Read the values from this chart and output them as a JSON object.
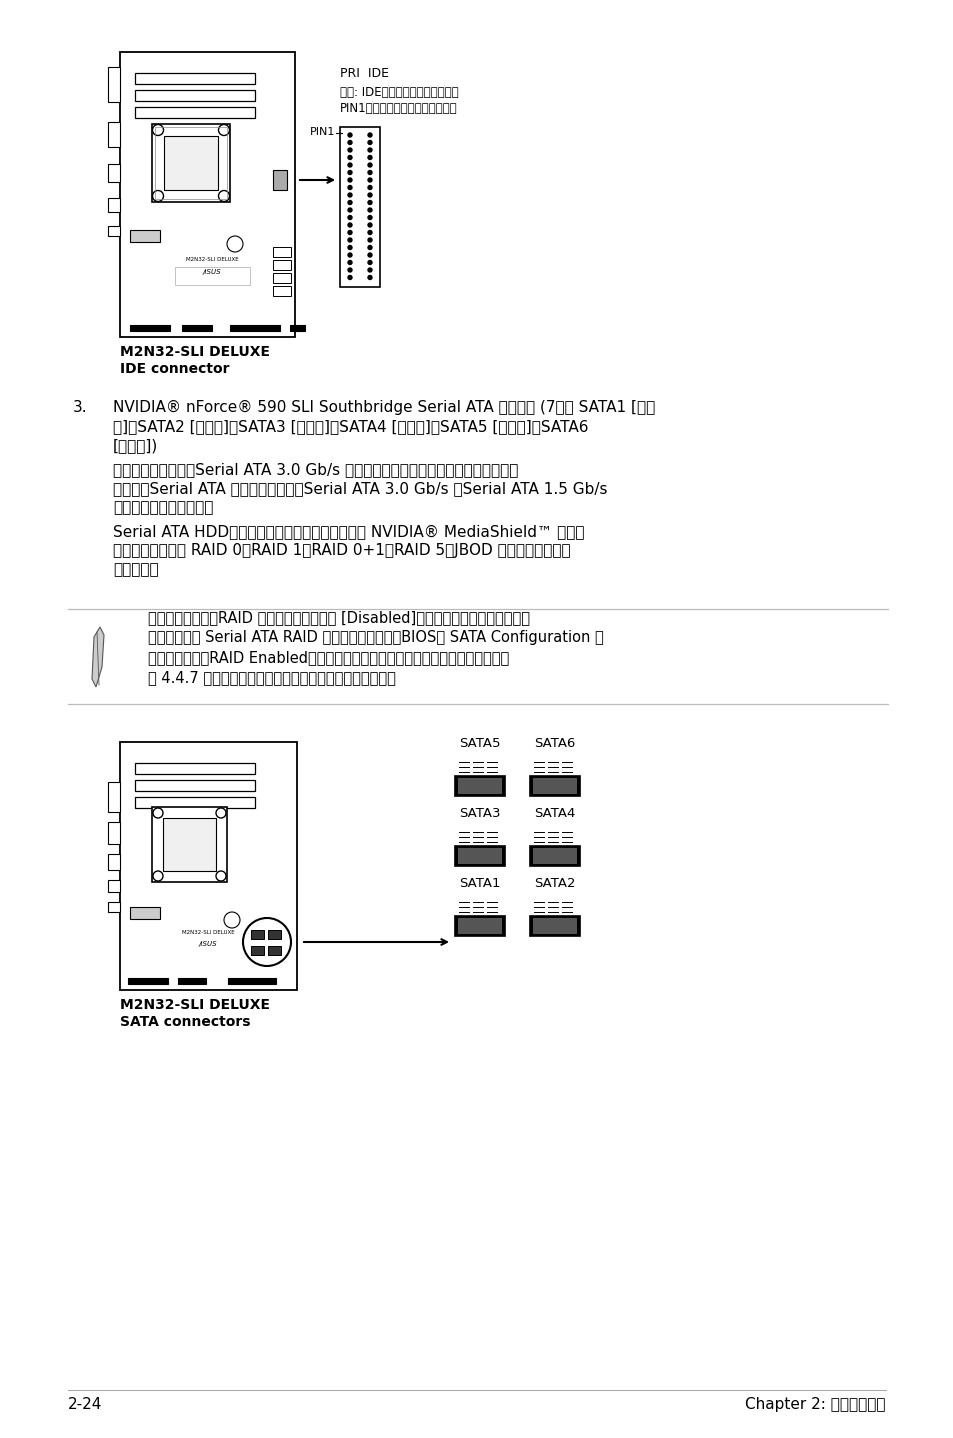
{
  "bg_color": "#ffffff",
  "text_color": "#000000",
  "page_number": "2-24",
  "chapter_label": "Chapter 2: ハードウェア",
  "ide_label1": "M2N32-SLI DELUXE",
  "ide_label2": "IDE connector",
  "sata_label1": "M2N32-SLI DELUXE",
  "sata_label2": "SATA connectors",
  "pri_ide_label": "PRI  IDE",
  "pri_ide_note1": "注意: IDEケーブルの赤いラインと",
  "pri_ide_note2": "PIN1の向きを合わせてください。",
  "pin1_label": "PIN1",
  "item3_num": "3.",
  "item3_line1": "NVIDIA® nForce® 590 SLI Southbridge Serial ATA コネクタ (7ピン SATA1 [レッ",
  "item3_line2": "ド]、SATA2 [レッド]、SATA3 [レッド]、SATA4 [レッド]、SATA5 [レッド]、SATA6",
  "item3_line3": "[レッド])",
  "p1_line1": "これらのコネクタはSerial ATA 3.0 Gb/s ハードディスクと光学ディスクドライブに",
  "p1_line2": "使用するSerial ATA ケーブル用です。Serial ATA 3.0 Gb/s はSerial ATA 1.5 Gb/s",
  "p1_line3": "と下位互換があります。",
  "p2_line1": "Serial ATA HDDを取り付けた場合は、オンボード NVIDIA® MediaShield™ コント",
  "p2_line2": "ローラを使用して RAID 0、RAID 1、RAID 0+1、RAID 5、JBOD を構築することが",
  "p2_line3": "できます。",
  "note_line1": "これらコネクタのRAID 機能はデフォルトで [Disabled]に設定されています。これら",
  "note_line2": "のコネクタで Serial ATA RAID を構築する場合は、BIOSの SATA Configuration サ",
  "note_line3": "ブメニューで「RAID Enabled」の項目を有効にしてください。詳細はセクション",
  "note_line4": "「 4.4.7 オンボードデバイス設定構成」をご覧ください。"
}
